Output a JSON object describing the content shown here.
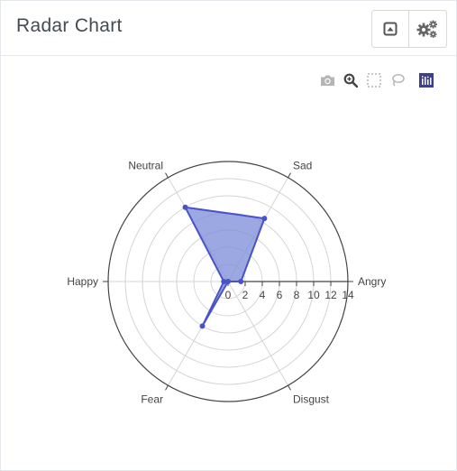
{
  "header": {
    "title": "Radar Chart",
    "buttons": [
      {
        "icon": "collapse-panel-icon"
      },
      {
        "icon": "settings-gears-icon"
      }
    ]
  },
  "modebar": {
    "buttons": [
      "camera-icon",
      "zoom-icon",
      "box-select-icon",
      "lasso-select-icon",
      "plotly-logo-icon"
    ]
  },
  "chart_data": {
    "type": "radar",
    "title": "",
    "categories": [
      "Angry",
      "Disgust",
      "Fear",
      "Happy",
      "Neutral",
      "Sad"
    ],
    "radial_range": [
      0,
      14
    ],
    "radial_ticks": [
      "0",
      "2",
      "4",
      "6",
      "8",
      "10",
      "12",
      "14"
    ],
    "series": [
      {
        "values": [
          1.5,
          0,
          6,
          0.5,
          10,
          8.5
        ],
        "color": "#4a52c8",
        "fill": "#7f8fd8"
      }
    ],
    "grid": true
  }
}
